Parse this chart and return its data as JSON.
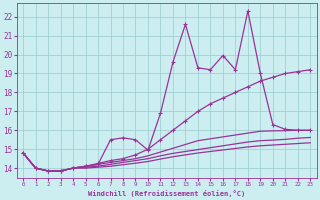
{
  "xlabel": "Windchill (Refroidissement éolien,°C)",
  "bg_color": "#cceef0",
  "line_color": "#993399",
  "grid_color": "#99cccc",
  "xlim": [
    -0.5,
    23.5
  ],
  "ylim": [
    13.5,
    22.7
  ],
  "xticks": [
    0,
    1,
    2,
    3,
    4,
    5,
    6,
    7,
    8,
    9,
    10,
    11,
    12,
    13,
    14,
    15,
    16,
    17,
    18,
    19,
    20,
    21,
    22,
    23
  ],
  "yticks": [
    14,
    15,
    16,
    17,
    18,
    19,
    20,
    21,
    22
  ],
  "lines": [
    {
      "y": [
        14.8,
        14.0,
        13.85,
        13.85,
        14.0,
        14.1,
        14.2,
        15.5,
        15.6,
        15.5,
        14.95,
        16.9,
        19.6,
        21.6,
        19.3,
        19.2,
        19.95,
        19.2,
        22.3,
        19.0,
        16.3,
        16.05,
        16.0,
        16.0
      ],
      "marker": true,
      "lw": 0.9
    },
    {
      "y": [
        14.8,
        14.0,
        13.85,
        13.85,
        14.0,
        14.1,
        14.25,
        14.4,
        14.5,
        14.7,
        15.0,
        15.5,
        16.0,
        16.5,
        17.0,
        17.4,
        17.7,
        18.0,
        18.3,
        18.6,
        18.8,
        19.0,
        19.1,
        19.2
      ],
      "marker": true,
      "lw": 0.9
    },
    {
      "y": [
        14.8,
        14.0,
        13.85,
        13.85,
        14.0,
        14.1,
        14.2,
        14.3,
        14.4,
        14.5,
        14.65,
        14.85,
        15.05,
        15.25,
        15.45,
        15.55,
        15.65,
        15.75,
        15.85,
        15.95,
        15.97,
        15.98,
        16.0,
        16.0
      ],
      "marker": false,
      "lw": 0.9
    },
    {
      "y": [
        14.8,
        14.0,
        13.85,
        13.85,
        14.0,
        14.05,
        14.1,
        14.2,
        14.3,
        14.4,
        14.5,
        14.65,
        14.78,
        14.88,
        14.98,
        15.08,
        15.18,
        15.28,
        15.38,
        15.45,
        15.48,
        15.52,
        15.58,
        15.62
      ],
      "marker": false,
      "lw": 0.9
    },
    {
      "y": [
        14.8,
        14.0,
        13.85,
        13.85,
        14.0,
        14.0,
        14.05,
        14.1,
        14.18,
        14.26,
        14.35,
        14.48,
        14.6,
        14.7,
        14.8,
        14.88,
        14.96,
        15.04,
        15.12,
        15.18,
        15.22,
        15.26,
        15.3,
        15.34
      ],
      "marker": false,
      "lw": 0.9
    }
  ]
}
